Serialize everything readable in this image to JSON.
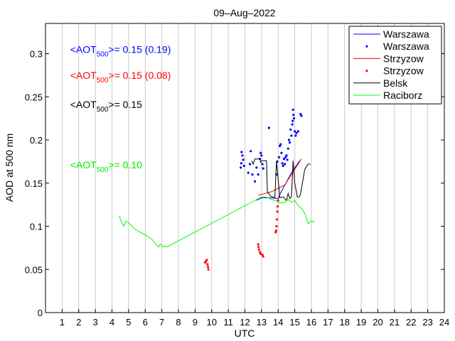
{
  "chart_data": {
    "type": "line",
    "title": "09–Aug–2022",
    "xlabel": "UTC",
    "ylabel": "AOD at 500 nm",
    "xlim": [
      0,
      24
    ],
    "ylim": [
      0,
      0.335
    ],
    "grid": {
      "x": true,
      "y": false
    },
    "xticks": [
      1,
      2,
      3,
      4,
      5,
      6,
      7,
      8,
      9,
      10,
      11,
      12,
      13,
      14,
      15,
      16,
      17,
      18,
      19,
      20,
      21,
      22,
      23,
      24
    ],
    "yticks": [
      0,
      0.05,
      0.1,
      0.15,
      0.2,
      0.25,
      0.3
    ],
    "ytick_labels": [
      "0",
      "0.05",
      "0.1",
      "0.15",
      "0.2",
      "0.25",
      "0.3"
    ],
    "legend_position": "top-right",
    "annotations": [
      {
        "pre": "<AOT",
        "sub": "500",
        "post": ">= 0.15 (0.19)",
        "color": "#0000ff",
        "y": 0.305,
        "x": 2.0
      },
      {
        "pre": "<AOT",
        "sub": "500",
        "post": ">= 0.15 (0.08)",
        "color": "#ff0000",
        "y": 0.275,
        "x": 2.0
      },
      {
        "pre": "<AOT",
        "sub": "500",
        "post": ">= 0.15",
        "color": "#000000",
        "y": 0.241,
        "x": 2.0
      },
      {
        "pre": "<AOT",
        "sub": "500",
        "post": ">= 0.10",
        "color": "#00ee00",
        "y": 0.171,
        "x": 2.0
      }
    ],
    "series": [
      {
        "name": "Warszawa",
        "style": "line",
        "color": "#0000ff",
        "x": [
          12.7,
          13.0,
          13.5,
          14.0,
          14.1,
          14.6,
          14.9,
          15.3
        ],
        "y": [
          0.13,
          0.133,
          0.133,
          0.132,
          0.137,
          0.155,
          0.165,
          0.176
        ]
      },
      {
        "name": "Warszawa",
        "style": "points",
        "color": "#0000ff",
        "x": [
          11.75,
          11.78,
          11.8,
          11.85,
          11.9,
          11.95,
          12.2,
          12.3,
          12.35,
          12.45,
          12.6,
          12.7,
          12.8,
          12.9,
          12.95,
          13.0,
          13.05,
          13.1,
          13.45,
          13.9,
          13.95,
          14.05,
          14.1,
          14.15,
          14.2,
          14.25,
          14.3,
          14.35,
          14.4,
          14.45,
          14.5,
          14.55,
          14.6,
          14.65,
          14.7,
          14.75,
          14.8,
          14.85,
          14.88,
          14.9,
          14.92,
          14.95,
          15.0,
          15.05,
          15.1,
          15.2,
          15.35,
          15.4
        ],
        "y": [
          0.168,
          0.173,
          0.186,
          0.182,
          0.177,
          0.17,
          0.162,
          0.172,
          0.187,
          0.16,
          0.152,
          0.168,
          0.16,
          0.178,
          0.185,
          0.182,
          0.172,
          0.167,
          0.214,
          0.16,
          0.175,
          0.18,
          0.193,
          0.195,
          0.185,
          0.173,
          0.17,
          0.178,
          0.172,
          0.18,
          0.182,
          0.177,
          0.19,
          0.2,
          0.197,
          0.212,
          0.205,
          0.218,
          0.222,
          0.235,
          0.229,
          0.225,
          0.21,
          0.205,
          0.208,
          0.21,
          0.23,
          0.228
        ]
      },
      {
        "name": "Strzyzow",
        "style": "line",
        "color": "#ff0000",
        "x": [
          12.8,
          13.6,
          14.4,
          15.4
        ],
        "y": [
          0.136,
          0.14,
          0.148,
          0.178
        ]
      },
      {
        "name": "Strzyzow",
        "style": "points",
        "color": "#ff0000",
        "x": [
          9.6,
          9.65,
          9.7,
          9.75,
          9.78,
          9.8,
          12.8,
          12.82,
          12.85,
          12.9,
          12.95,
          13.05,
          13.1,
          13.85,
          13.88,
          13.9,
          13.92,
          13.95,
          13.97,
          14.0
        ],
        "y": [
          0.058,
          0.059,
          0.061,
          0.056,
          0.053,
          0.05,
          0.079,
          0.076,
          0.073,
          0.07,
          0.068,
          0.067,
          0.065,
          0.093,
          0.095,
          0.1,
          0.108,
          0.117,
          0.123,
          0.13
        ]
      },
      {
        "name": "Belsk",
        "style": "line",
        "color": "#000000",
        "x": [
          12.4,
          12.5,
          12.6,
          12.9,
          12.95,
          13.0,
          13.3,
          13.35,
          13.5,
          13.55,
          13.8,
          13.9,
          14.1,
          14.3,
          14.5,
          14.6,
          14.7,
          14.8,
          14.9,
          15.0,
          15.1,
          15.15,
          15.25,
          15.3,
          15.35,
          15.6,
          15.8,
          15.95
        ],
        "y": [
          0.176,
          0.172,
          0.178,
          0.178,
          0.174,
          0.176,
          0.176,
          0.14,
          0.136,
          0.135,
          0.133,
          0.176,
          0.133,
          0.134,
          0.13,
          0.138,
          0.132,
          0.134,
          0.176,
          0.15,
          0.14,
          0.134,
          0.134,
          0.135,
          0.138,
          0.166,
          0.172,
          0.172
        ]
      },
      {
        "name": "Raciborz",
        "style": "line",
        "color": "#00ff00",
        "x": [
          4.45,
          4.5,
          4.7,
          4.85,
          5.0,
          5.3,
          5.6,
          6.0,
          6.4,
          6.6,
          6.8,
          6.9,
          7.1,
          7.2,
          7.3,
          13.0,
          13.2,
          13.4,
          13.6,
          13.8,
          14.0,
          14.2,
          14.4,
          14.6,
          14.8,
          15.0,
          15.2,
          15.4,
          15.6,
          15.8,
          16.0,
          16.2
        ],
        "y": [
          0.112,
          0.108,
          0.1,
          0.106,
          0.104,
          0.098,
          0.094,
          0.09,
          0.085,
          0.08,
          0.076,
          0.079,
          0.076,
          0.077,
          0.076,
          0.134,
          0.134,
          0.133,
          0.131,
          0.13,
          0.128,
          0.127,
          0.128,
          0.131,
          0.128,
          0.13,
          0.124,
          0.121,
          0.115,
          0.103,
          0.106,
          0.105
        ]
      }
    ],
    "legend": [
      {
        "label": "Warszawa",
        "color": "#0000ff",
        "symbol": "line"
      },
      {
        "label": "Warszawa",
        "color": "#0000ff",
        "symbol": "points"
      },
      {
        "label": "Strzyzow",
        "color": "#ff0000",
        "symbol": "line"
      },
      {
        "label": "Strzyzow",
        "color": "#ff0000",
        "symbol": "points"
      },
      {
        "label": "Belsk",
        "color": "#000000",
        "symbol": "line"
      },
      {
        "label": "Raciborz",
        "color": "#00ff00",
        "symbol": "line"
      }
    ]
  }
}
